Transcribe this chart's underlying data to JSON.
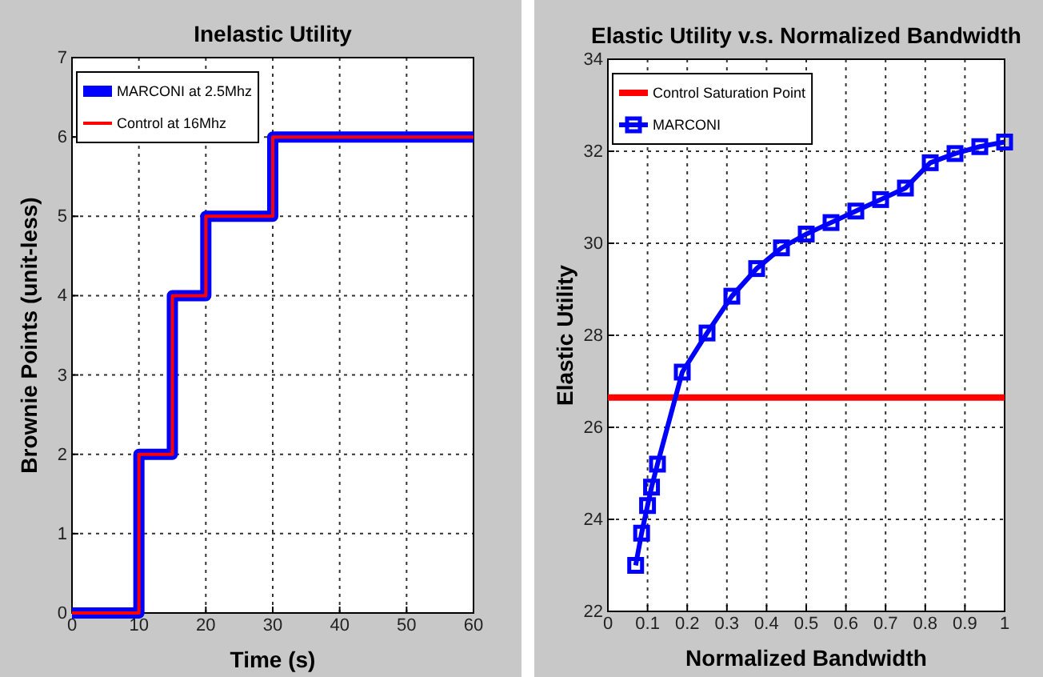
{
  "chart_data": [
    {
      "type": "step",
      "title": "Inelastic Utility",
      "xlabel": "Time (s)",
      "ylabel": "Brownie Points (unit-less)",
      "x": [
        0,
        10,
        15,
        20,
        30,
        60
      ],
      "series": [
        {
          "name": "MARCONI at 2.5Mhz",
          "color": "#0000ff",
          "values": [
            0,
            2,
            4,
            5,
            6,
            6
          ]
        },
        {
          "name": "Control at 16Mhz",
          "color": "#ff0000",
          "values": [
            0,
            2,
            4,
            5,
            6,
            6
          ]
        }
      ],
      "xlim": [
        0,
        60
      ],
      "xticks": [
        0,
        10,
        20,
        30,
        40,
        50,
        60
      ],
      "ylim": [
        0,
        7
      ],
      "yticks": [
        0,
        1,
        2,
        3,
        4,
        5,
        6,
        7
      ],
      "grid": true,
      "legend": "top left"
    },
    {
      "type": "line",
      "title": "Elastic Utility v.s. Normalized Bandwidth",
      "xlabel": "Normalized Bandwidth",
      "ylabel": "Elastic Utility",
      "x": [
        0.07,
        0.085,
        0.1,
        0.11,
        0.125,
        0.1875,
        0.25,
        0.3125,
        0.375,
        0.4375,
        0.5,
        0.5625,
        0.625,
        0.6875,
        0.75,
        0.8125,
        0.875,
        0.9375,
        1.0
      ],
      "series": [
        {
          "name": "MARCONI",
          "color": "#0000ff",
          "values": [
            23.0,
            23.7,
            24.3,
            24.7,
            25.2,
            27.2,
            28.05,
            28.85,
            29.45,
            29.9,
            30.2,
            30.45,
            30.7,
            30.95,
            31.2,
            31.75,
            31.95,
            32.1,
            32.2
          ]
        }
      ],
      "ref_lines": [
        {
          "axis": "y",
          "value": 26.65,
          "label": "Control Saturation Point",
          "color": "#ff0000"
        }
      ],
      "xlim": [
        0,
        1
      ],
      "xticks": [
        0,
        0.1,
        0.2,
        0.3,
        0.4,
        0.5,
        0.6,
        0.7,
        0.8,
        0.9,
        1
      ],
      "ylim": [
        22,
        34
      ],
      "yticks": [
        22,
        24,
        26,
        28,
        30,
        32,
        34
      ],
      "grid": true,
      "legend": "top left",
      "marker": "square"
    }
  ]
}
